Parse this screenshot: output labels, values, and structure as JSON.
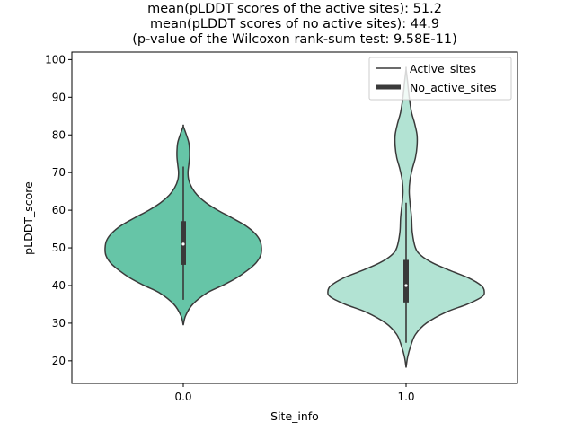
{
  "chart_data": {
    "type": "violin",
    "title_lines": [
      "mean(pLDDT scores of the active sites): 51.2",
      "mean(pLDDT scores of no active sites): 44.9",
      "(p-value of the Wilcoxon rank-sum test: 9.58E-11)"
    ],
    "xlabel": "Site_info",
    "ylabel": "pLDDT_score",
    "ylim": [
      14,
      102
    ],
    "yticks": [
      20,
      30,
      40,
      50,
      60,
      70,
      80,
      90,
      100
    ],
    "grid": false,
    "legend": {
      "placement": "top-right",
      "entries": [
        "Active_sites",
        "No_active_sites"
      ]
    },
    "colors": {
      "violin_0": "#66c5a7",
      "violin_1": "#b2e3d3",
      "outline": "#3a3a3a",
      "box": "#3a3a3a"
    },
    "categories": [
      "0.0",
      "1.0"
    ],
    "violins": [
      {
        "category": "0.0",
        "color_key": "violin_0",
        "density": [
          [
            29.5,
            0.0
          ],
          [
            32,
            0.03
          ],
          [
            35,
            0.12
          ],
          [
            38,
            0.3
          ],
          [
            40,
            0.5
          ],
          [
            42,
            0.68
          ],
          [
            44,
            0.82
          ],
          [
            46,
            0.93
          ],
          [
            48,
            0.99
          ],
          [
            50,
            1.0
          ],
          [
            52,
            0.98
          ],
          [
            54,
            0.91
          ],
          [
            56,
            0.79
          ],
          [
            58,
            0.62
          ],
          [
            60,
            0.44
          ],
          [
            62,
            0.29
          ],
          [
            64,
            0.18
          ],
          [
            66,
            0.11
          ],
          [
            68,
            0.07
          ],
          [
            70,
            0.06
          ],
          [
            72,
            0.07
          ],
          [
            74,
            0.08
          ],
          [
            76,
            0.08
          ],
          [
            78,
            0.07
          ],
          [
            80,
            0.04
          ],
          [
            82.3,
            0.0
          ]
        ],
        "whisker": [
          36.2,
          71.6
        ],
        "quartiles": [
          45.5,
          57.1
        ],
        "median": 51.0
      },
      {
        "category": "1.0",
        "color_key": "violin_1",
        "density": [
          [
            18.2,
            0.0
          ],
          [
            21,
            0.02
          ],
          [
            24,
            0.06
          ],
          [
            27,
            0.12
          ],
          [
            30,
            0.26
          ],
          [
            33,
            0.52
          ],
          [
            35,
            0.78
          ],
          [
            37,
            0.97
          ],
          [
            38.5,
            1.0
          ],
          [
            40,
            0.96
          ],
          [
            42,
            0.8
          ],
          [
            44,
            0.56
          ],
          [
            46,
            0.34
          ],
          [
            48,
            0.19
          ],
          [
            50,
            0.12
          ],
          [
            54,
            0.08
          ],
          [
            58,
            0.07
          ],
          [
            62,
            0.05
          ],
          [
            65,
            0.04
          ],
          [
            68,
            0.05
          ],
          [
            71,
            0.08
          ],
          [
            74,
            0.12
          ],
          [
            77,
            0.14
          ],
          [
            80,
            0.14
          ],
          [
            83,
            0.11
          ],
          [
            86,
            0.07
          ],
          [
            90,
            0.04
          ],
          [
            94,
            0.02
          ],
          [
            97.5,
            0.0
          ]
        ],
        "whisker": [
          24.8,
          62.0
        ],
        "quartiles": [
          35.5,
          46.8
        ],
        "median": 40.0
      }
    ]
  }
}
